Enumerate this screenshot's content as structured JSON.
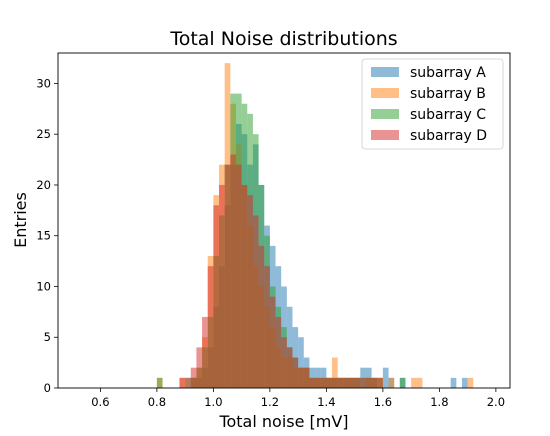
{
  "chart_data": {
    "type": "histogram",
    "title": "Total Noise distributions",
    "xlabel": "Total noise [mV]",
    "ylabel": "Entries",
    "xlim": [
      0.45,
      2.05
    ],
    "ylim": [
      0,
      33
    ],
    "xticks": [
      0.6,
      0.8,
      1.0,
      1.2,
      1.4,
      1.6,
      1.8,
      2.0
    ],
    "xtick_labels": [
      "0.6",
      "0.8",
      "1.0",
      "1.2",
      "1.4",
      "1.6",
      "1.8",
      "2.0"
    ],
    "yticks": [
      0,
      5,
      10,
      15,
      20,
      25,
      30
    ],
    "ytick_labels": [
      "0",
      "5",
      "10",
      "15",
      "20",
      "25",
      "30"
    ],
    "bin_start": 0.8,
    "bin_width": 0.02,
    "legend_position": "top-right",
    "grid": false,
    "series": [
      {
        "name": "subarray A",
        "color": "#1f77b4",
        "values": [
          0,
          0,
          0,
          0,
          0,
          0,
          1,
          1,
          2,
          4,
          8,
          12,
          18,
          22,
          26,
          25,
          22,
          24,
          20,
          16,
          14,
          12,
          10,
          8,
          6,
          5,
          3,
          2,
          2,
          2,
          1,
          1,
          1,
          1,
          1,
          1,
          2,
          2,
          1,
          0,
          2,
          1,
          0,
          1,
          0,
          0,
          0,
          0,
          0,
          0,
          0,
          0,
          1,
          0,
          1,
          0
        ]
      },
      {
        "name": "subarray B",
        "color": "#ff7f0e",
        "values": [
          1,
          0,
          0,
          0,
          1,
          0,
          1,
          2,
          5,
          13,
          19,
          22,
          32,
          28,
          24,
          20,
          16,
          12,
          10,
          8,
          6,
          4,
          3,
          3,
          2,
          2,
          2,
          1,
          1,
          1,
          1,
          3,
          1,
          1,
          1,
          1,
          0,
          1,
          1,
          1,
          0,
          1,
          0,
          0,
          0,
          1,
          1,
          0,
          0,
          0,
          0,
          0,
          0,
          0,
          0,
          1
        ]
      },
      {
        "name": "subarray C",
        "color": "#2ca02c",
        "values": [
          1,
          0,
          0,
          0,
          0,
          1,
          1,
          2,
          4,
          7,
          13,
          17,
          22,
          29,
          29,
          28,
          27,
          25,
          20,
          15,
          10,
          8,
          6,
          4,
          3,
          2,
          2,
          1,
          1,
          1,
          1,
          1,
          1,
          1,
          1,
          1,
          1,
          1,
          1,
          1,
          0,
          0,
          0,
          1,
          0,
          0,
          0,
          0,
          0,
          0,
          0,
          0,
          0,
          0,
          0,
          0
        ]
      },
      {
        "name": "subarray D",
        "color": "#d62728",
        "values": [
          0,
          0,
          0,
          0,
          1,
          1,
          2,
          4,
          7,
          12,
          18,
          20,
          22,
          23,
          22,
          20,
          19,
          17,
          14,
          12,
          9,
          7,
          5,
          4,
          3,
          2,
          2,
          1,
          1,
          1,
          1,
          1,
          1,
          1,
          1,
          1,
          1,
          1,
          1,
          1,
          0,
          0,
          0,
          0,
          0,
          0,
          0,
          0,
          0,
          0,
          0,
          0,
          0,
          0,
          0,
          0
        ]
      }
    ]
  }
}
